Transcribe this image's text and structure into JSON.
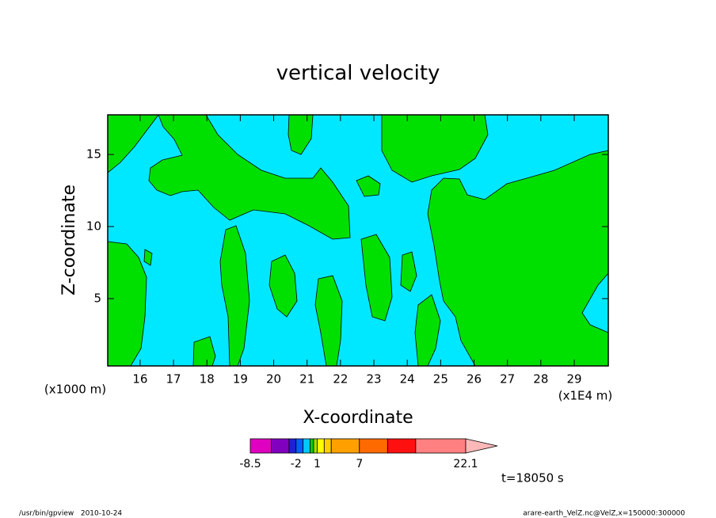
{
  "chart_data": {
    "type": "contour",
    "title": "vertical velocity",
    "x_label": "X-coordinate",
    "y_label": "Z-coordinate",
    "x_unit": "(x1E4 m)",
    "y_unit": "(x1000 m)",
    "xlim": [
      15.03,
      30.02
    ],
    "xticks": [
      16,
      17,
      18,
      19,
      20,
      21,
      22,
      23,
      24,
      25,
      26,
      27,
      28,
      29
    ],
    "ylim": [
      0.33,
      17.75
    ],
    "yticks": [
      5,
      10,
      15
    ],
    "field_colors": [
      "#00e8ff",
      "#00e000"
    ],
    "colorbar": {
      "levels": [
        -8.5,
        -5.5,
        -3,
        -2,
        -1,
        0,
        0.5,
        1,
        2,
        3,
        7,
        11,
        15,
        22.1
      ],
      "colors": [
        "#e000c0",
        "#8000c0",
        "#2020d0",
        "#0060ff",
        "#00c8ff",
        "#00d000",
        "#a0e000",
        "#ffff00",
        "#ffd000",
        "#ffa000",
        "#ff6a00",
        "#ff1010",
        "#ff8080"
      ],
      "extend_color": "#ffb8b8",
      "ticks": [
        -8.5,
        -2,
        1,
        7,
        22.1
      ]
    },
    "time_label": "t=18050 s",
    "footer_left": "/usr/bin/gpview   2010-10-24",
    "footer_right": "arare-earth_VelZ.nc@VelZ,x=150000:300000"
  }
}
